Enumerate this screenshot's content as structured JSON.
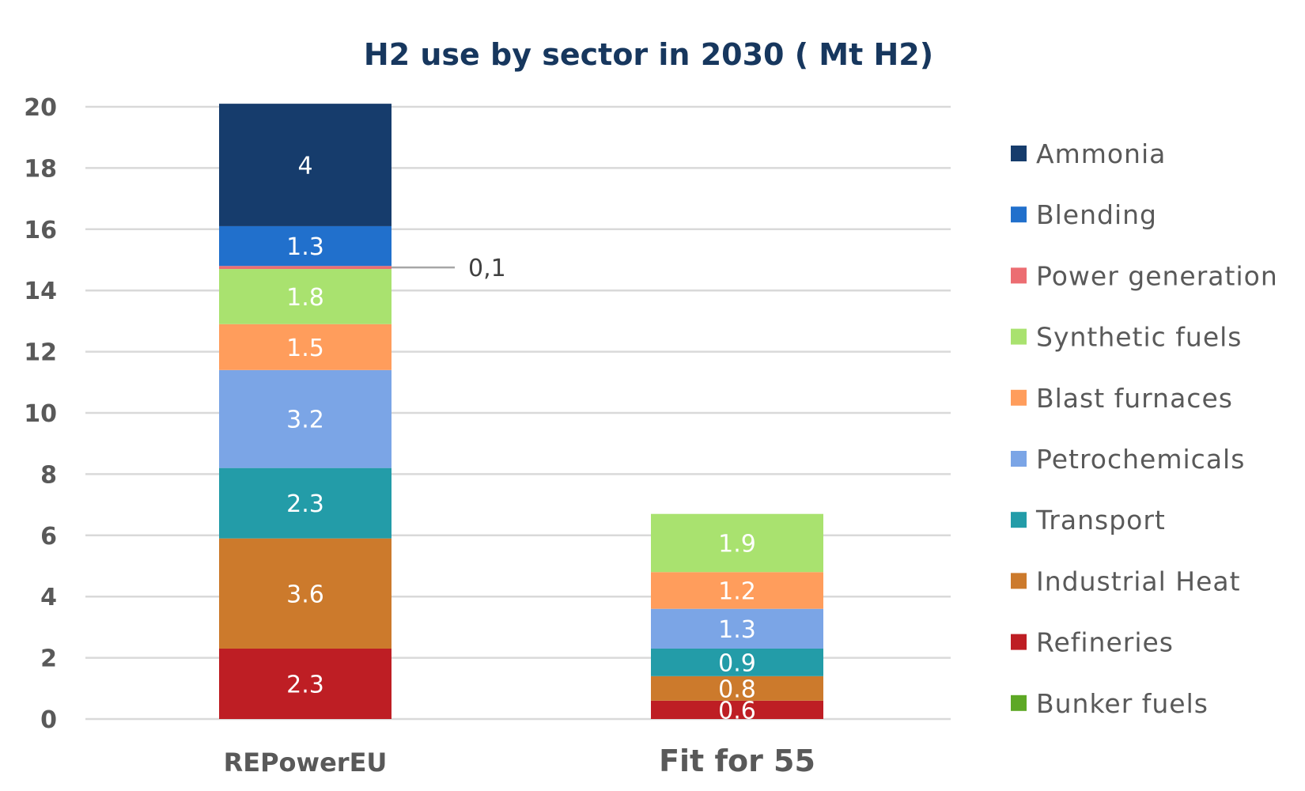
{
  "chart_data": {
    "type": "bar",
    "stacked": true,
    "title": "H2 use by sector in 2030 ( Mt H2)",
    "xlabel": "",
    "ylabel": "",
    "categories": [
      "REPowerEU",
      "Fit for 55"
    ],
    "ylim": [
      0,
      20
    ],
    "yticks": [
      "0",
      "2",
      "4",
      "6",
      "8",
      "10",
      "12",
      "14",
      "16",
      "18",
      "20"
    ],
    "grid": true,
    "legend_position": "right",
    "series": [
      {
        "name": "Refineries",
        "color": "#be1e24",
        "values": [
          2.3,
          0.6
        ],
        "labels": [
          "2.3",
          "0.6"
        ]
      },
      {
        "name": "Industrial Heat",
        "color": "#cc7a2c",
        "values": [
          3.6,
          0.8
        ],
        "labels": [
          "3.6",
          "0.8"
        ]
      },
      {
        "name": "Transport",
        "color": "#239ca8",
        "values": [
          2.3,
          0.9
        ],
        "labels": [
          "2.3",
          "0.9"
        ]
      },
      {
        "name": "Petrochemicals",
        "color": "#7ba5e6",
        "values": [
          3.2,
          1.3
        ],
        "labels": [
          "3.2",
          "1.3"
        ]
      },
      {
        "name": "Blast furnaces",
        "color": "#ff9d5c",
        "values": [
          1.5,
          1.2
        ],
        "labels": [
          "1.5",
          "1.2"
        ]
      },
      {
        "name": "Synthetic fuels",
        "color": "#a9e26f",
        "values": [
          1.8,
          1.9
        ],
        "labels": [
          "1.8",
          "1.9"
        ]
      },
      {
        "name": "Power generation",
        "color": "#ec6d72",
        "values": [
          0.1,
          0
        ],
        "labels": [
          "",
          ""
        ]
      },
      {
        "name": "Blending",
        "color": "#2170cc",
        "values": [
          1.3,
          0
        ],
        "labels": [
          "1.3",
          ""
        ]
      },
      {
        "name": "Ammonia",
        "color": "#163c6c",
        "values": [
          4,
          0
        ],
        "labels": [
          "4",
          ""
        ]
      },
      {
        "name": "Bunker fuels",
        "color": "#5da825",
        "values": [
          0,
          0
        ],
        "labels": [
          "",
          ""
        ]
      }
    ],
    "legend": [
      {
        "name": "Ammonia",
        "color": "#163c6c"
      },
      {
        "name": "Blending",
        "color": "#2170cc"
      },
      {
        "name": "Power generation",
        "color": "#ec6d72"
      },
      {
        "name": "Synthetic fuels",
        "color": "#a9e26f"
      },
      {
        "name": "Blast furnaces",
        "color": "#ff9d5c"
      },
      {
        "name": "Petrochemicals",
        "color": "#7ba5e6"
      },
      {
        "name": "Transport",
        "color": "#239ca8"
      },
      {
        "name": "Industrial Heat",
        "color": "#cc7a2c"
      },
      {
        "name": "Refineries",
        "color": "#be1e24"
      },
      {
        "name": "Bunker fuels",
        "color": "#5da825"
      }
    ],
    "annotations": [
      {
        "text": "0,1",
        "category": "REPowerEU",
        "series": "Power generation"
      }
    ]
  }
}
